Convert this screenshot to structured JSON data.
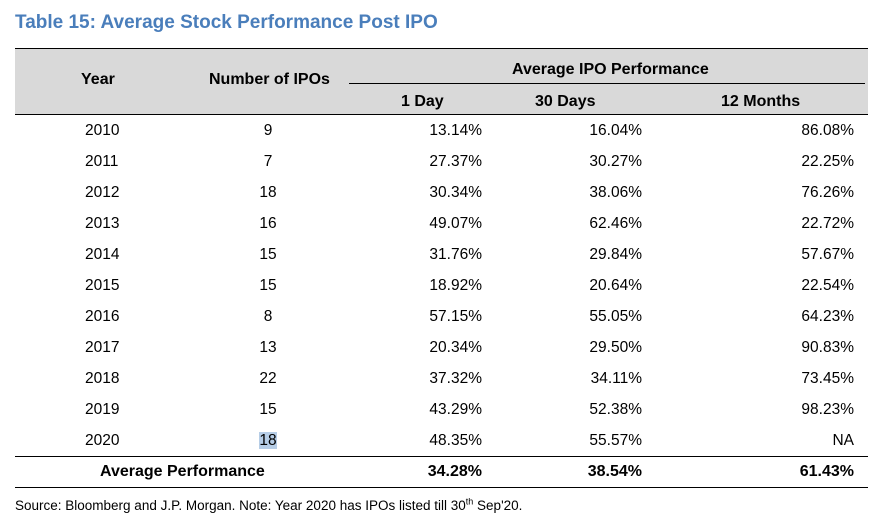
{
  "title": "Table 15: Average Stock Performance Post IPO",
  "header": {
    "year": "Year",
    "num_ipos": "Number of IPOs",
    "group": "Average IPO Performance",
    "day1": "1 Day",
    "day30": "30 Days",
    "month12": "12 Months"
  },
  "rows": [
    {
      "year": "2010",
      "num": "9",
      "d1": "13.14%",
      "d30": "16.04%",
      "m12": "86.08%"
    },
    {
      "year": "2011",
      "num": "7",
      "d1": "27.37%",
      "d30": "30.27%",
      "m12": "22.25%"
    },
    {
      "year": "2012",
      "num": "18",
      "d1": "30.34%",
      "d30": "38.06%",
      "m12": "76.26%"
    },
    {
      "year": "2013",
      "num": "16",
      "d1": "49.07%",
      "d30": "62.46%",
      "m12": "22.72%"
    },
    {
      "year": "2014",
      "num": "15",
      "d1": "31.76%",
      "d30": "29.84%",
      "m12": "57.67%"
    },
    {
      "year": "2015",
      "num": "15",
      "d1": "18.92%",
      "d30": "20.64%",
      "m12": "22.54%"
    },
    {
      "year": "2016",
      "num": "8",
      "d1": "57.15%",
      "d30": "55.05%",
      "m12": "64.23%"
    },
    {
      "year": "2017",
      "num": "13",
      "d1": "20.34%",
      "d30": "29.50%",
      "m12": "90.83%"
    },
    {
      "year": "2018",
      "num": "22",
      "d1": "37.32%",
      "d30": "34.11%",
      "m12": "73.45%"
    },
    {
      "year": "2019",
      "num": "15",
      "d1": "43.29%",
      "d30": "52.38%",
      "m12": "98.23%"
    },
    {
      "year": "2020",
      "num": "18",
      "d1": "48.35%",
      "d30": "55.57%",
      "m12": "NA"
    }
  ],
  "average": {
    "label": "Average Performance",
    "d1": "34.28%",
    "d30": "38.54%",
    "m12": "61.43%"
  },
  "source": {
    "before": "Source: Bloomberg and J.P. Morgan. Note: Year 2020 has IPOs listed till 30",
    "sup": "th",
    "after": " Sep'20."
  },
  "colors": {
    "title": "#4a7ebb",
    "header_bg": "#d9d9d9",
    "selection": "#b6cde6"
  }
}
